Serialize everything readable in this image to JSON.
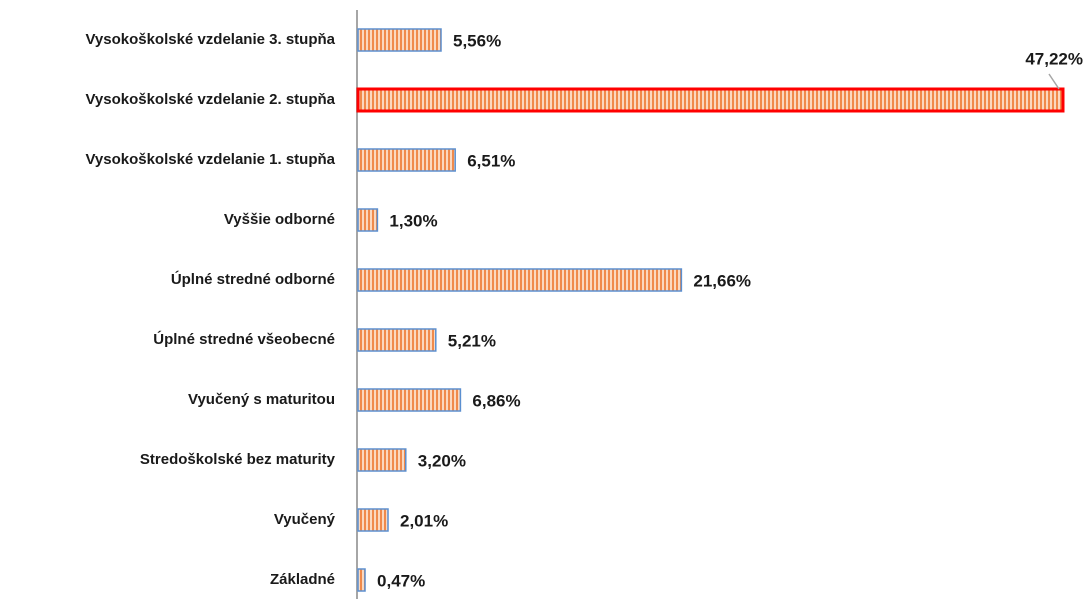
{
  "chart_data": {
    "type": "hbar",
    "categories": [
      "Vysokoškolské vzdelanie 3. stupňa",
      "Vysokoškolské vzdelanie 2. stupňa",
      "Vysokoškolské vzdelanie 1. stupňa",
      "Vyššie odborné",
      "Úplné stredné odborné",
      "Úplné stredné všeobecné",
      "Vyučený s maturitou",
      "Stredoškolské bez maturity",
      "Vyučený",
      "Základné"
    ],
    "values": [
      5.56,
      47.22,
      6.51,
      1.3,
      21.66,
      5.21,
      6.86,
      3.2,
      2.01,
      0.47
    ],
    "value_labels": [
      "5,56%",
      "47,22%",
      "6,51%",
      "1,30%",
      "21,66%",
      "5,21%",
      "6,86%",
      "3,20%",
      "2,01%",
      "0,47%"
    ],
    "color": "#f4a070",
    "edge_color": "#5b8fd0",
    "highlight_index": 1,
    "highlight_color": "#ff0000"
  }
}
